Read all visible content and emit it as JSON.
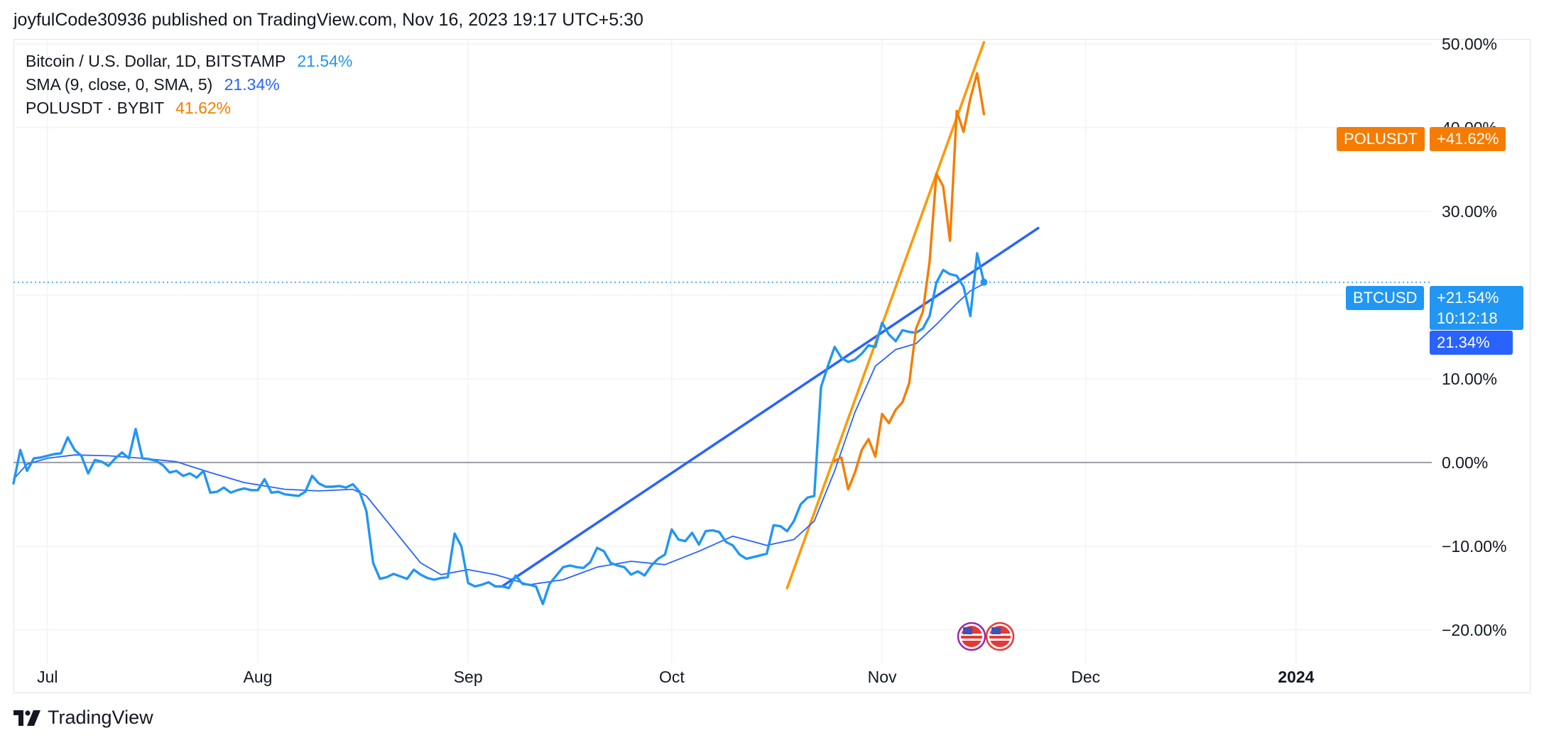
{
  "header": {
    "publish_line": "joyfulCode30936 published on TradingView.com, Nov 16, 2023 19:17 UTC+5:30"
  },
  "legend": [
    {
      "label": "Bitcoin / U.S. Dollar, 1D, BITSTAMP",
      "value": "21.54%",
      "color": "#2196f3"
    },
    {
      "label": "SMA (9, close, 0, SMA, 5)",
      "value": "21.34%",
      "color": "#2962ff"
    },
    {
      "label": "POLUSDT · BYBIT",
      "value": "41.62%",
      "color": "#f57c00"
    }
  ],
  "price_tags": {
    "polusdt_name": "POLUSDT",
    "polusdt_value": "+41.62%",
    "btcusd_name": "BTCUSD",
    "btcusd_value": "+21.54%",
    "btcusd_countdown": "10:12:18",
    "sma_value": "21.34%"
  },
  "footer": {
    "brand": "TradingView"
  },
  "colors": {
    "btc": "#2196f3",
    "sma": "#2962ff",
    "pol": "#f57c00",
    "trend_blue": "#2962ff",
    "trend_orange": "#ff9800",
    "zero_line": "#9598a1",
    "grid": "#f0f3fa"
  },
  "icons": [
    "us-flag-event-icon",
    "us-flag-event-icon"
  ],
  "chart_data": {
    "type": "line",
    "y_unit": "%",
    "ylim": [
      -24,
      50.5
    ],
    "y_ticks": [
      50,
      40,
      30,
      10,
      0,
      -10,
      -20
    ],
    "y_tick_labels": [
      "50.00%",
      "40.00%",
      "30.00%",
      "10.00%",
      "0.00%",
      "−10.00%",
      "−20.00%"
    ],
    "x_range": [
      "2023-06-26",
      "2024-01-21"
    ],
    "x_ticks": [
      {
        "date": "2023-07-01",
        "label": "Jul",
        "bold": false
      },
      {
        "date": "2023-08-01",
        "label": "Aug",
        "bold": false
      },
      {
        "date": "2023-09-01",
        "label": "Sep",
        "bold": false
      },
      {
        "date": "2023-10-01",
        "label": "Oct",
        "bold": false
      },
      {
        "date": "2023-11-01",
        "label": "Nov",
        "bold": false
      },
      {
        "date": "2023-12-01",
        "label": "Dec",
        "bold": false
      },
      {
        "date": "2024-01-01",
        "label": "2024",
        "bold": true
      }
    ],
    "series": [
      {
        "name": "Bitcoin / U.S. Dollar, 1D, BITSTAMP",
        "points": [
          [
            "2023-06-26",
            -2.5
          ],
          [
            "2023-06-27",
            1.5
          ],
          [
            "2023-06-28",
            -1.0
          ],
          [
            "2023-06-29",
            0.5
          ],
          [
            "2023-06-30",
            0.6
          ],
          [
            "2023-07-02",
            1.0
          ],
          [
            "2023-07-03",
            1.1
          ],
          [
            "2023-07-04",
            3.0
          ],
          [
            "2023-07-05",
            1.5
          ],
          [
            "2023-07-06",
            0.8
          ],
          [
            "2023-07-07",
            -1.3
          ],
          [
            "2023-07-08",
            0.3
          ],
          [
            "2023-07-09",
            0.1
          ],
          [
            "2023-07-10",
            -0.4
          ],
          [
            "2023-07-11",
            0.5
          ],
          [
            "2023-07-12",
            1.2
          ],
          [
            "2023-07-13",
            0.5
          ],
          [
            "2023-07-14",
            4.0
          ],
          [
            "2023-07-15",
            0.5
          ],
          [
            "2023-07-16",
            0.4
          ],
          [
            "2023-07-17",
            0.2
          ],
          [
            "2023-07-18",
            -0.3
          ],
          [
            "2023-07-19",
            -1.2
          ],
          [
            "2023-07-20",
            -1.0
          ],
          [
            "2023-07-21",
            -1.6
          ],
          [
            "2023-07-22",
            -1.3
          ],
          [
            "2023-07-23",
            -1.8
          ],
          [
            "2023-07-24",
            -1.0
          ],
          [
            "2023-07-25",
            -3.6
          ],
          [
            "2023-07-26",
            -3.5
          ],
          [
            "2023-07-27",
            -3.0
          ],
          [
            "2023-07-28",
            -3.6
          ],
          [
            "2023-07-29",
            -3.3
          ],
          [
            "2023-07-30",
            -3.1
          ],
          [
            "2023-07-31",
            -3.3
          ],
          [
            "2023-08-01",
            -3.3
          ],
          [
            "2023-08-02",
            -2.0
          ],
          [
            "2023-08-03",
            -3.6
          ],
          [
            "2023-08-04",
            -3.5
          ],
          [
            "2023-08-05",
            -3.8
          ],
          [
            "2023-08-06",
            -3.9
          ],
          [
            "2023-08-07",
            -4.0
          ],
          [
            "2023-08-08",
            -3.5
          ],
          [
            "2023-08-09",
            -1.6
          ],
          [
            "2023-08-10",
            -2.5
          ],
          [
            "2023-08-11",
            -2.9
          ],
          [
            "2023-08-12",
            -2.9
          ],
          [
            "2023-08-13",
            -2.8
          ],
          [
            "2023-08-14",
            -3.0
          ],
          [
            "2023-08-15",
            -2.6
          ],
          [
            "2023-08-16",
            -3.5
          ],
          [
            "2023-08-17",
            -5.8
          ],
          [
            "2023-08-18",
            -12.0
          ],
          [
            "2023-08-19",
            -13.9
          ],
          [
            "2023-08-20",
            -13.7
          ],
          [
            "2023-08-21",
            -13.3
          ],
          [
            "2023-08-22",
            -13.6
          ],
          [
            "2023-08-23",
            -13.9
          ],
          [
            "2023-08-24",
            -12.8
          ],
          [
            "2023-08-25",
            -13.4
          ],
          [
            "2023-08-26",
            -13.8
          ],
          [
            "2023-08-27",
            -14.0
          ],
          [
            "2023-08-28",
            -13.8
          ],
          [
            "2023-08-29",
            -13.7
          ],
          [
            "2023-08-30",
            -8.5
          ],
          [
            "2023-08-31",
            -10.0
          ],
          [
            "2023-09-01",
            -14.4
          ],
          [
            "2023-09-02",
            -14.8
          ],
          [
            "2023-09-03",
            -14.6
          ],
          [
            "2023-09-04",
            -14.3
          ],
          [
            "2023-09-05",
            -14.8
          ],
          [
            "2023-09-06",
            -14.8
          ],
          [
            "2023-09-07",
            -15.0
          ],
          [
            "2023-09-08",
            -13.5
          ],
          [
            "2023-09-09",
            -14.5
          ],
          [
            "2023-09-10",
            -14.6
          ],
          [
            "2023-09-11",
            -14.8
          ],
          [
            "2023-09-12",
            -16.9
          ],
          [
            "2023-09-13",
            -14.5
          ],
          [
            "2023-09-14",
            -13.5
          ],
          [
            "2023-09-15",
            -12.5
          ],
          [
            "2023-09-16",
            -12.3
          ],
          [
            "2023-09-17",
            -12.5
          ],
          [
            "2023-09-18",
            -12.6
          ],
          [
            "2023-09-19",
            -11.9
          ],
          [
            "2023-09-20",
            -10.2
          ],
          [
            "2023-09-21",
            -10.6
          ],
          [
            "2023-09-22",
            -12.0
          ],
          [
            "2023-09-23",
            -12.3
          ],
          [
            "2023-09-24",
            -12.5
          ],
          [
            "2023-09-25",
            -13.4
          ],
          [
            "2023-09-26",
            -13.0
          ],
          [
            "2023-09-27",
            -13.5
          ],
          [
            "2023-09-28",
            -12.3
          ],
          [
            "2023-09-29",
            -11.5
          ],
          [
            "2023-09-30",
            -11.0
          ],
          [
            "2023-10-01",
            -8.0
          ],
          [
            "2023-10-02",
            -9.2
          ],
          [
            "2023-10-03",
            -9.4
          ],
          [
            "2023-10-04",
            -8.4
          ],
          [
            "2023-10-05",
            -9.8
          ],
          [
            "2023-10-06",
            -8.2
          ],
          [
            "2023-10-07",
            -8.1
          ],
          [
            "2023-10-08",
            -8.3
          ],
          [
            "2023-10-09",
            -9.5
          ],
          [
            "2023-10-10",
            -9.9
          ],
          [
            "2023-10-11",
            -11.0
          ],
          [
            "2023-10-12",
            -11.5
          ],
          [
            "2023-10-13",
            -11.3
          ],
          [
            "2023-10-14",
            -11.1
          ],
          [
            "2023-10-15",
            -10.9
          ],
          [
            "2023-10-16",
            -7.5
          ],
          [
            "2023-10-17",
            -7.6
          ],
          [
            "2023-10-18",
            -8.2
          ],
          [
            "2023-10-19",
            -7.0
          ],
          [
            "2023-10-20",
            -5.0
          ],
          [
            "2023-10-21",
            -4.2
          ],
          [
            "2023-10-22",
            -4.0
          ],
          [
            "2023-10-23",
            9.0
          ],
          [
            "2023-10-24",
            11.5
          ],
          [
            "2023-10-25",
            13.8
          ],
          [
            "2023-10-26",
            12.5
          ],
          [
            "2023-10-27",
            12.0
          ],
          [
            "2023-10-28",
            12.3
          ],
          [
            "2023-10-29",
            13.0
          ],
          [
            "2023-10-30",
            14.0
          ],
          [
            "2023-10-31",
            13.8
          ],
          [
            "2023-11-01",
            16.7
          ],
          [
            "2023-11-02",
            15.3
          ],
          [
            "2023-11-03",
            14.5
          ],
          [
            "2023-11-04",
            15.8
          ],
          [
            "2023-11-05",
            15.6
          ],
          [
            "2023-11-06",
            15.5
          ],
          [
            "2023-11-07",
            16.0
          ],
          [
            "2023-11-08",
            17.5
          ],
          [
            "2023-11-09",
            21.5
          ],
          [
            "2023-11-10",
            23.0
          ],
          [
            "2023-11-11",
            22.5
          ],
          [
            "2023-11-12",
            22.3
          ],
          [
            "2023-11-13",
            21.0
          ],
          [
            "2023-11-14",
            17.5
          ],
          [
            "2023-11-15",
            25.0
          ],
          [
            "2023-11-16",
            21.54
          ]
        ]
      },
      {
        "name": "SMA (9, close, 0, SMA, 5)",
        "points": [
          [
            "2023-06-26",
            -2.0
          ],
          [
            "2023-06-28",
            -0.2
          ],
          [
            "2023-07-01",
            0.5
          ],
          [
            "2023-07-05",
            0.9
          ],
          [
            "2023-07-10",
            0.8
          ],
          [
            "2023-07-15",
            0.5
          ],
          [
            "2023-07-20",
            0.1
          ],
          [
            "2023-07-25",
            -1.2
          ],
          [
            "2023-07-30",
            -2.4
          ],
          [
            "2023-08-05",
            -3.2
          ],
          [
            "2023-08-10",
            -3.4
          ],
          [
            "2023-08-15",
            -3.2
          ],
          [
            "2023-08-17",
            -4.0
          ],
          [
            "2023-08-21",
            -8.0
          ],
          [
            "2023-08-25",
            -12.0
          ],
          [
            "2023-08-28",
            -13.4
          ],
          [
            "2023-09-01",
            -12.8
          ],
          [
            "2023-09-05",
            -13.4
          ],
          [
            "2023-09-10",
            -14.6
          ],
          [
            "2023-09-15",
            -14.0
          ],
          [
            "2023-09-20",
            -12.5
          ],
          [
            "2023-09-25",
            -11.8
          ],
          [
            "2023-09-30",
            -12.2
          ],
          [
            "2023-10-05",
            -10.6
          ],
          [
            "2023-10-10",
            -8.8
          ],
          [
            "2023-10-15",
            -9.9
          ],
          [
            "2023-10-19",
            -9.2
          ],
          [
            "2023-10-22",
            -7.0
          ],
          [
            "2023-10-25",
            -1.0
          ],
          [
            "2023-10-28",
            6.0
          ],
          [
            "2023-10-31",
            11.5
          ],
          [
            "2023-11-03",
            13.5
          ],
          [
            "2023-11-06",
            14.2
          ],
          [
            "2023-11-09",
            16.5
          ],
          [
            "2023-11-12",
            19.0
          ],
          [
            "2023-11-14",
            20.5
          ],
          [
            "2023-11-16",
            21.34
          ]
        ]
      },
      {
        "name": "POLUSDT · BYBIT",
        "points": [
          [
            "2023-10-25",
            0.2
          ],
          [
            "2023-10-26",
            0.6
          ],
          [
            "2023-10-27",
            -3.2
          ],
          [
            "2023-10-28",
            -1.2
          ],
          [
            "2023-10-29",
            1.5
          ],
          [
            "2023-10-30",
            2.8
          ],
          [
            "2023-10-31",
            0.7
          ],
          [
            "2023-11-01",
            5.8
          ],
          [
            "2023-11-02",
            4.7
          ],
          [
            "2023-11-03",
            6.3
          ],
          [
            "2023-11-04",
            7.2
          ],
          [
            "2023-11-05",
            9.5
          ],
          [
            "2023-11-06",
            16.0
          ],
          [
            "2023-11-07",
            18.0
          ],
          [
            "2023-11-08",
            24.0
          ],
          [
            "2023-11-09",
            34.5
          ],
          [
            "2023-11-10",
            33.0
          ],
          [
            "2023-11-11",
            26.5
          ],
          [
            "2023-11-12",
            42.0
          ],
          [
            "2023-11-13",
            39.5
          ],
          [
            "2023-11-14",
            43.5
          ],
          [
            "2023-11-15",
            46.5
          ],
          [
            "2023-11-16",
            41.62
          ]
        ]
      }
    ],
    "trendlines": [
      {
        "color": "blue",
        "from": [
          "2023-09-06",
          -14.8
        ],
        "to": [
          "2023-11-24",
          28.0
        ]
      },
      {
        "color": "orange",
        "from": [
          "2023-10-18",
          -15.0
        ],
        "to": [
          "2023-11-16",
          50.2
        ]
      }
    ],
    "last_value_line": 21.54,
    "zero_line": 0,
    "grid": true,
    "legend_position": "top-left"
  }
}
